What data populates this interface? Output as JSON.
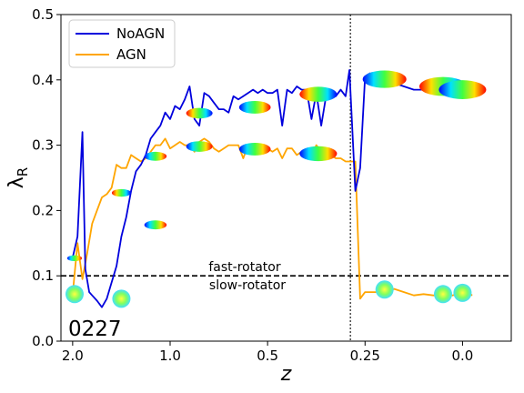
{
  "chart_data": {
    "type": "line",
    "xlabel": "z",
    "ylabel": "λ_R",
    "x_axis": {
      "tick_labels": [
        "2.0",
        "1.0",
        "0.5",
        "0.25",
        "0.0"
      ],
      "tick_pos": [
        0,
        1,
        2,
        3,
        4
      ],
      "range": [
        -0.12,
        4.5
      ]
    },
    "ylim": [
      0.0,
      0.5
    ],
    "y_ticks": [
      0.0,
      0.1,
      0.2,
      0.3,
      0.4,
      0.5
    ],
    "y_tick_labels": [
      "0.0",
      "0.1",
      "0.2",
      "0.3",
      "0.4",
      "0.5"
    ],
    "legend": {
      "placement": "top-left"
    },
    "series": [
      {
        "name": "NoAGN",
        "color": "#0000dd",
        "x": [
          0.0,
          0.05,
          0.1,
          0.13,
          0.17,
          0.2,
          0.25,
          0.3,
          0.35,
          0.4,
          0.45,
          0.5,
          0.55,
          0.6,
          0.65,
          0.7,
          0.75,
          0.8,
          0.85,
          0.9,
          0.95,
          1.0,
          1.05,
          1.1,
          1.15,
          1.2,
          1.25,
          1.3,
          1.35,
          1.4,
          1.45,
          1.5,
          1.55,
          1.6,
          1.65,
          1.7,
          1.75,
          1.8,
          1.85,
          1.9,
          1.95,
          2.0,
          2.05,
          2.1,
          2.15,
          2.2,
          2.25,
          2.3,
          2.35,
          2.4,
          2.45,
          2.5,
          2.55,
          2.6,
          2.65,
          2.7,
          2.75,
          2.8,
          2.84,
          2.9,
          2.95,
          3.0,
          3.05,
          3.1,
          3.2,
          3.3,
          3.4,
          3.5,
          3.6,
          3.7,
          3.8,
          3.9,
          4.0,
          4.05,
          4.1,
          4.15
        ],
        "y": [
          0.128,
          0.16,
          0.32,
          0.11,
          0.075,
          0.07,
          0.062,
          0.052,
          0.065,
          0.09,
          0.115,
          0.16,
          0.19,
          0.23,
          0.26,
          0.27,
          0.285,
          0.31,
          0.32,
          0.33,
          0.35,
          0.34,
          0.36,
          0.355,
          0.37,
          0.39,
          0.34,
          0.33,
          0.38,
          0.375,
          0.365,
          0.355,
          0.355,
          0.35,
          0.375,
          0.37,
          0.375,
          0.38,
          0.385,
          0.38,
          0.385,
          0.38,
          0.38,
          0.385,
          0.33,
          0.385,
          0.38,
          0.39,
          0.385,
          0.385,
          0.34,
          0.38,
          0.33,
          0.375,
          0.385,
          0.375,
          0.385,
          0.375,
          0.415,
          0.23,
          0.265,
          0.405,
          0.41,
          0.405,
          0.4,
          0.395,
          0.39,
          0.385,
          0.385,
          0.39,
          0.39,
          0.385,
          0.385,
          0.385,
          0.385,
          0.385
        ]
      },
      {
        "name": "AGN",
        "color": "#ffa500",
        "x": [
          0.0,
          0.05,
          0.1,
          0.15,
          0.2,
          0.25,
          0.3,
          0.35,
          0.4,
          0.45,
          0.5,
          0.55,
          0.6,
          0.65,
          0.7,
          0.75,
          0.8,
          0.85,
          0.9,
          0.95,
          1.0,
          1.05,
          1.1,
          1.15,
          1.2,
          1.25,
          1.3,
          1.35,
          1.4,
          1.45,
          1.5,
          1.55,
          1.6,
          1.65,
          1.7,
          1.75,
          1.8,
          1.85,
          1.9,
          1.95,
          2.0,
          2.05,
          2.1,
          2.15,
          2.2,
          2.25,
          2.3,
          2.35,
          2.4,
          2.45,
          2.5,
          2.55,
          2.6,
          2.65,
          2.7,
          2.75,
          2.8,
          2.85,
          2.9,
          2.95,
          3.0,
          3.1,
          3.2,
          3.3,
          3.4,
          3.5,
          3.6,
          3.7,
          3.8,
          3.9,
          4.0,
          4.05,
          4.1
        ],
        "y": [
          0.072,
          0.15,
          0.095,
          0.135,
          0.18,
          0.2,
          0.22,
          0.225,
          0.235,
          0.27,
          0.265,
          0.265,
          0.285,
          0.28,
          0.275,
          0.28,
          0.29,
          0.3,
          0.3,
          0.31,
          0.295,
          0.3,
          0.305,
          0.3,
          0.3,
          0.29,
          0.305,
          0.31,
          0.305,
          0.295,
          0.29,
          0.295,
          0.3,
          0.3,
          0.3,
          0.28,
          0.3,
          0.3,
          0.29,
          0.295,
          0.295,
          0.29,
          0.295,
          0.28,
          0.295,
          0.295,
          0.285,
          0.29,
          0.285,
          0.285,
          0.3,
          0.29,
          0.285,
          0.285,
          0.28,
          0.28,
          0.275,
          0.275,
          0.275,
          0.065,
          0.075,
          0.075,
          0.075,
          0.08,
          0.075,
          0.07,
          0.072,
          0.07,
          0.07,
          0.07,
          0.075,
          0.075,
          0.07
        ]
      }
    ],
    "reference_lines": [
      {
        "orientation": "horizontal",
        "y": 0.1,
        "style": "dashed",
        "color": "#000000"
      },
      {
        "orientation": "vertical",
        "x": 2.85,
        "style": "dotted",
        "color": "#555555"
      }
    ],
    "annotations": {
      "above_line": "fast-rotator",
      "below_line": "slow-rotator",
      "id_label": "0227"
    },
    "insets": [
      {
        "kind": "velocity-map",
        "x": 0.02,
        "y": 0.127
      },
      {
        "kind": "velocity-map",
        "x": 0.02,
        "y": 0.072
      },
      {
        "kind": "velocity-map",
        "x": 0.5,
        "y": 0.227
      },
      {
        "kind": "velocity-map",
        "x": 0.5,
        "y": 0.065
      },
      {
        "kind": "velocity-map",
        "x": 0.85,
        "y": 0.283
      },
      {
        "kind": "velocity-map",
        "x": 0.85,
        "y": 0.178
      },
      {
        "kind": "velocity-map",
        "x": 1.3,
        "y": 0.349
      },
      {
        "kind": "velocity-map",
        "x": 1.3,
        "y": 0.298
      },
      {
        "kind": "velocity-map",
        "x": 1.87,
        "y": 0.358
      },
      {
        "kind": "velocity-map",
        "x": 1.87,
        "y": 0.294
      },
      {
        "kind": "velocity-map",
        "x": 2.52,
        "y": 0.378
      },
      {
        "kind": "velocity-map",
        "x": 2.52,
        "y": 0.287
      },
      {
        "kind": "velocity-map",
        "x": 3.2,
        "y": 0.401
      },
      {
        "kind": "velocity-map",
        "x": 3.2,
        "y": 0.079
      },
      {
        "kind": "velocity-map",
        "x": 3.8,
        "y": 0.39
      },
      {
        "kind": "velocity-map",
        "x": 3.8,
        "y": 0.072
      },
      {
        "kind": "velocity-map",
        "x": 4.0,
        "y": 0.385
      },
      {
        "kind": "velocity-map",
        "x": 4.0,
        "y": 0.074
      }
    ]
  }
}
